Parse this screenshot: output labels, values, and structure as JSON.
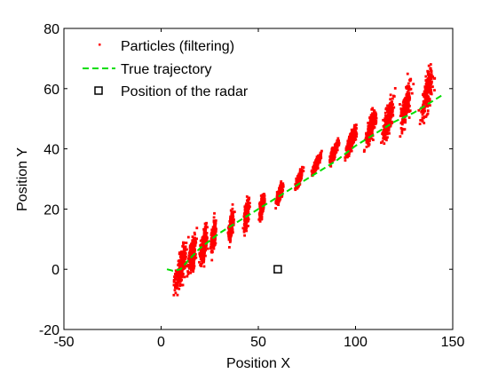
{
  "chart_data": {
    "type": "scatter",
    "xlabel": "Position X",
    "ylabel": "Position Y",
    "xlim": [
      -50,
      150
    ],
    "ylim": [
      -20,
      80
    ],
    "xticks": [
      "-50",
      "0",
      "50",
      "100",
      "150"
    ],
    "yticks": [
      "-20",
      "0",
      "20",
      "40",
      "60",
      "80"
    ],
    "grid": false,
    "legend_position": "top-left",
    "colors": {
      "particles": "#ff0000",
      "trajectory": "#00dd00",
      "radar": "#000000"
    },
    "series": [
      {
        "name": "Particles (filtering)",
        "marker": "dot",
        "clusters": [
          {
            "x": 10,
            "y": 0,
            "spread_x": 8,
            "spread_y": 13
          },
          {
            "x": 16,
            "y": 5,
            "spread_x": 5,
            "spread_y": 11
          },
          {
            "x": 22,
            "y": 8,
            "spread_x": 4,
            "spread_y": 10
          },
          {
            "x": 27,
            "y": 11,
            "spread_x": 3,
            "spread_y": 10
          },
          {
            "x": 36,
            "y": 14,
            "spread_x": 3,
            "spread_y": 9
          },
          {
            "x": 44,
            "y": 18,
            "spread_x": 3,
            "spread_y": 9
          },
          {
            "x": 52,
            "y": 21,
            "spread_x": 3,
            "spread_y": 7
          },
          {
            "x": 61,
            "y": 25,
            "spread_x": 4,
            "spread_y": 6
          },
          {
            "x": 71,
            "y": 30,
            "spread_x": 4,
            "spread_y": 5
          },
          {
            "x": 80,
            "y": 35,
            "spread_x": 5,
            "spread_y": 5
          },
          {
            "x": 89,
            "y": 39,
            "spread_x": 5,
            "spread_y": 6
          },
          {
            "x": 98,
            "y": 43,
            "spread_x": 6,
            "spread_y": 8
          },
          {
            "x": 108,
            "y": 47,
            "spread_x": 6,
            "spread_y": 10
          },
          {
            "x": 117,
            "y": 50,
            "spread_x": 6,
            "spread_y": 12
          },
          {
            "x": 126,
            "y": 55,
            "spread_x": 6,
            "spread_y": 13
          },
          {
            "x": 137,
            "y": 59,
            "spread_x": 7,
            "spread_y": 15
          }
        ]
      },
      {
        "name": "True trajectory",
        "line": "dashed",
        "x": [
          3,
          6,
          10,
          14,
          20,
          30,
          40,
          50,
          60,
          70,
          80,
          90,
          100,
          110,
          120,
          130,
          140,
          145
        ],
        "y": [
          0,
          -0.5,
          0,
          3,
          7,
          12,
          16,
          20,
          24,
          28,
          32,
          36,
          41,
          45,
          49,
          52,
          56,
          58
        ]
      },
      {
        "name": "Position of the radar",
        "marker": "square",
        "x": [
          60
        ],
        "y": [
          0
        ]
      }
    ]
  }
}
